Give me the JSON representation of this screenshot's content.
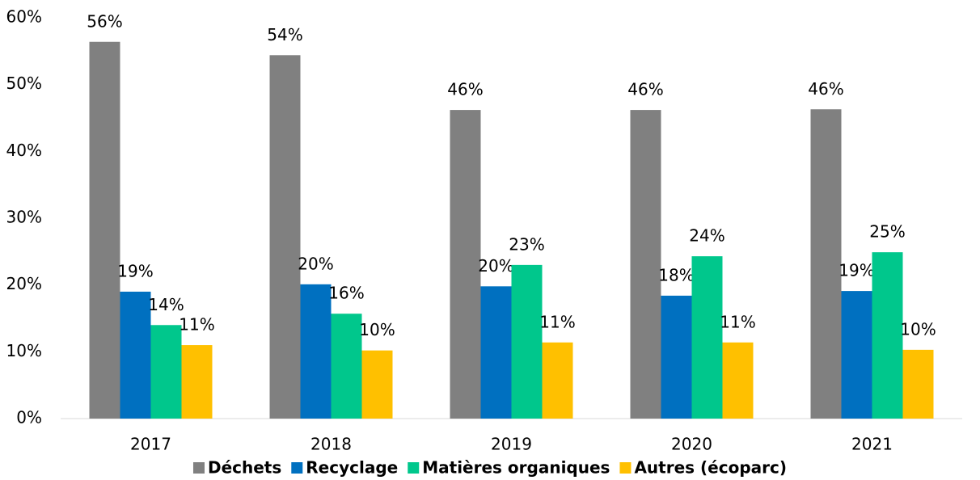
{
  "chart_data": {
    "type": "bar",
    "categories": [
      "2017",
      "2018",
      "2019",
      "2020",
      "2021"
    ],
    "series": [
      {
        "name": "Déchets",
        "color": "#808080",
        "values": [
          56.4,
          54.4,
          46.2,
          46.2,
          46.3
        ],
        "value_labels": [
          "56%",
          "54%",
          "46%",
          "46%",
          "46%"
        ]
      },
      {
        "name": "Recyclage",
        "color": "#0070c0",
        "values": [
          19.0,
          20.1,
          19.8,
          18.4,
          19.1
        ],
        "value_labels": [
          "19%",
          "20%",
          "20%",
          "18%",
          "19%"
        ]
      },
      {
        "name": "Matières organiques",
        "color": "#00c78c",
        "values": [
          14.0,
          15.7,
          23.0,
          24.3,
          24.9
        ],
        "value_labels": [
          "14%",
          "16%",
          "23%",
          "24%",
          "25%"
        ]
      },
      {
        "name": "Autres (écoparc)",
        "color": "#ffc000",
        "values": [
          11.0,
          10.2,
          11.4,
          11.4,
          10.3
        ],
        "value_labels": [
          "11%",
          "10%",
          "11%",
          "11%",
          "10%"
        ]
      }
    ],
    "ylim": [
      0,
      60
    ],
    "yticks": [
      {
        "value": 0,
        "label": "0%"
      },
      {
        "value": 10,
        "label": "10%"
      },
      {
        "value": 20,
        "label": "20%"
      },
      {
        "value": 30,
        "label": "30%"
      },
      {
        "value": 40,
        "label": "40%"
      },
      {
        "value": 50,
        "label": "50%"
      },
      {
        "value": 60,
        "label": "60%"
      }
    ],
    "legend": "bottom"
  }
}
